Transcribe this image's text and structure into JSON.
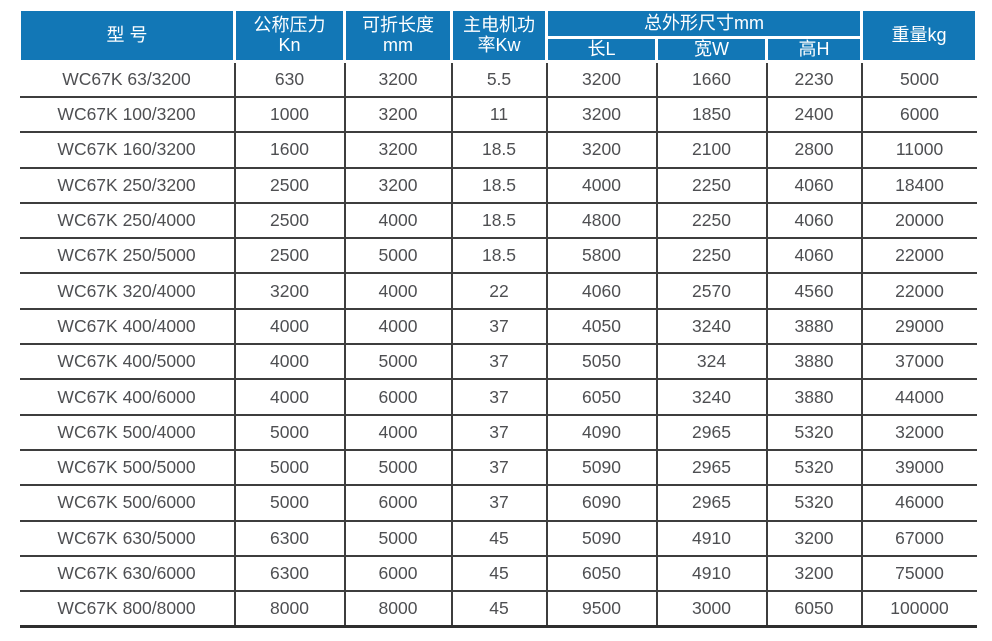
{
  "page": {
    "background": "#ffffff"
  },
  "colors": {
    "header_bg": "#1277b6",
    "header_text": "#ffffff",
    "body_text": "#4e4f52",
    "grid_line": "#3e3e3e"
  },
  "table": {
    "column_keys": [
      "model",
      "pressure_kn",
      "length_mm",
      "motor_kw",
      "dim_l",
      "dim_w",
      "dim_h",
      "weight_kg"
    ],
    "header": {
      "model": "型 号",
      "pressure_line1": "公称压力",
      "pressure_line2": "Kn",
      "length_line1": "可折长度",
      "length_line2": "mm",
      "motor_line1": "主电机功",
      "motor_line2": "率Kw",
      "dimensions_group": "总外形尺寸mm",
      "dim_l": "长L",
      "dim_w": "宽W",
      "dim_h": "高H",
      "weight": "重量kg"
    },
    "rows": [
      [
        "WC67K 63/3200",
        "630",
        "3200",
        "5.5",
        "3200",
        "1660",
        "2230",
        "5000"
      ],
      [
        "WC67K 100/3200",
        "1000",
        "3200",
        "11",
        "3200",
        "1850",
        "2400",
        "6000"
      ],
      [
        "WC67K 160/3200",
        "1600",
        "3200",
        "18.5",
        "3200",
        "2100",
        "2800",
        "11000"
      ],
      [
        "WC67K 250/3200",
        "2500",
        "3200",
        "18.5",
        "4000",
        "2250",
        "4060",
        "18400"
      ],
      [
        "WC67K 250/4000",
        "2500",
        "4000",
        "18.5",
        "4800",
        "2250",
        "4060",
        "20000"
      ],
      [
        "WC67K 250/5000",
        "2500",
        "5000",
        "18.5",
        "5800",
        "2250",
        "4060",
        "22000"
      ],
      [
        "WC67K 320/4000",
        "3200",
        "4000",
        "22",
        "4060",
        "2570",
        "4560",
        "22000"
      ],
      [
        "WC67K 400/4000",
        "4000",
        "4000",
        "37",
        "4050",
        "3240",
        "3880",
        "29000"
      ],
      [
        "WC67K 400/5000",
        "4000",
        "5000",
        "37",
        "5050",
        "324",
        "3880",
        "37000"
      ],
      [
        "WC67K 400/6000",
        "4000",
        "6000",
        "37",
        "6050",
        "3240",
        "3880",
        "44000"
      ],
      [
        "WC67K 500/4000",
        "5000",
        "4000",
        "37",
        "4090",
        "2965",
        "5320",
        "32000"
      ],
      [
        "WC67K 500/5000",
        "5000",
        "5000",
        "37",
        "5090",
        "2965",
        "5320",
        "39000"
      ],
      [
        "WC67K 500/6000",
        "5000",
        "6000",
        "37",
        "6090",
        "2965",
        "5320",
        "46000"
      ],
      [
        "WC67K 630/5000",
        "6300",
        "5000",
        "45",
        "5090",
        "4910",
        "3200",
        "67000"
      ],
      [
        "WC67K 630/6000",
        "6300",
        "6000",
        "45",
        "6050",
        "4910",
        "3200",
        "75000"
      ],
      [
        "WC67K 800/8000",
        "8000",
        "8000",
        "45",
        "9500",
        "3000",
        "6050",
        "100000"
      ]
    ]
  }
}
